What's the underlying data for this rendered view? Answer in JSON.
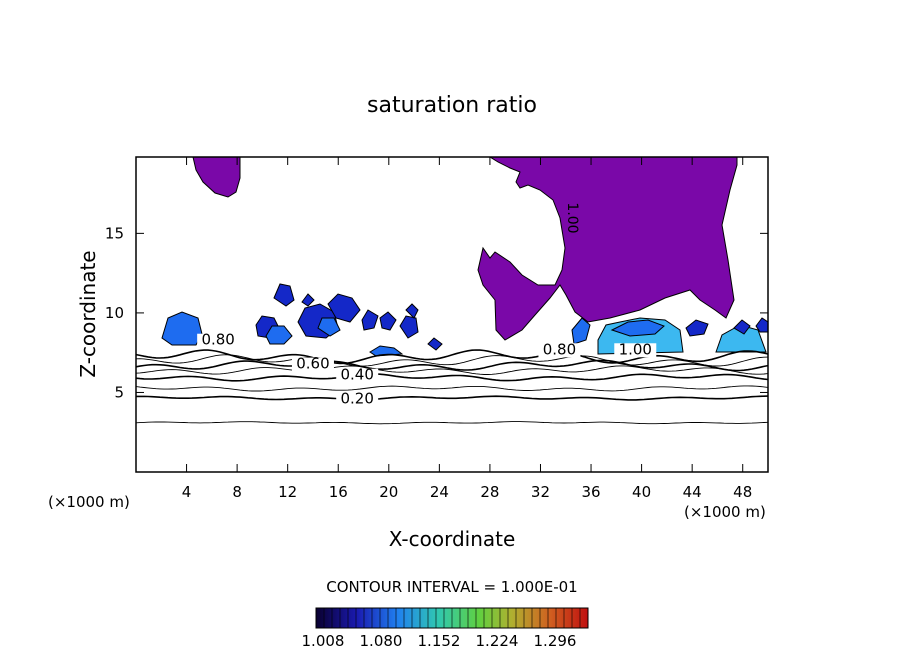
{
  "chart_data": {
    "type": "contour",
    "title": "saturation ratio",
    "xlabel": "X-coordinate",
    "ylabel": "Z-coordinate",
    "x_unit_left": "(×1000 m)",
    "x_unit_right": "(×1000 m)",
    "xlim": [
      0,
      50
    ],
    "ylim": [
      0,
      19.8
    ],
    "x_ticks": [
      4,
      8,
      12,
      16,
      20,
      24,
      28,
      32,
      36,
      40,
      44,
      48
    ],
    "y_ticks": [
      5,
      10,
      15
    ],
    "contour_interval_text": "CONTOUR INTERVAL = 1.000E-01",
    "contour_labels": [
      {
        "text": "0.20",
        "x": 17.5,
        "z": 4.3
      },
      {
        "text": "0.40",
        "x": 17.5,
        "z": 5.8
      },
      {
        "text": "0.60",
        "x": 14.0,
        "z": 6.5
      },
      {
        "text": "0.80",
        "x": 6.5,
        "z": 8.0
      },
      {
        "text": "0.80",
        "x": 33.5,
        "z": 7.4
      },
      {
        "text": "1.00",
        "x": 39.5,
        "z": 7.4
      }
    ],
    "contour_levels_z": [
      3.1,
      4.65,
      5.25,
      5.95,
      6.4,
      6.7,
      7.0,
      7.25
    ],
    "colorbar": {
      "labels": [
        "1.008",
        "1.080",
        "1.152",
        "1.224",
        "1.296"
      ],
      "colors": [
        "#0a0040",
        "#1a1ab0",
        "#2080f0",
        "#30d0a0",
        "#60e040",
        "#d0c030",
        "#e06020",
        "#c01010"
      ]
    },
    "fill_colors": {
      "supersaturated": "#7a08a8",
      "patch_dark": "#1428c8",
      "patch_mid": "#1e6cf0",
      "patch_light": "#3cb8f0"
    }
  }
}
